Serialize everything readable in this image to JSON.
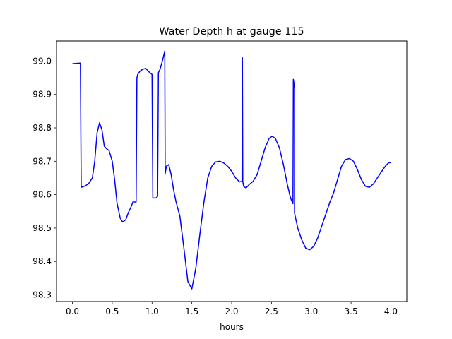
{
  "chart_data": {
    "type": "line",
    "title": "Water Depth h at gauge 115",
    "xlabel": "hours",
    "ylabel": "",
    "xlim": [
      -0.2,
      4.2
    ],
    "ylim": [
      98.28,
      99.06
    ],
    "xticks": [
      0.0,
      0.5,
      1.0,
      1.5,
      2.0,
      2.5,
      3.0,
      3.5,
      4.0
    ],
    "xtick_labels": [
      "0.0",
      "0.5",
      "1.0",
      "1.5",
      "2.0",
      "2.5",
      "3.0",
      "3.5",
      "4.0"
    ],
    "yticks": [
      98.3,
      98.4,
      98.5,
      98.6,
      98.7,
      98.8,
      98.9,
      99.0
    ],
    "ytick_labels": [
      "98.3",
      "98.4",
      "98.5",
      "98.6",
      "98.7",
      "98.8",
      "98.9",
      "99.0"
    ],
    "grid": false,
    "legend": "none",
    "series": [
      {
        "color": "#0000ff",
        "x": [
          0.0,
          0.04,
          0.1,
          0.11,
          0.15,
          0.2,
          0.25,
          0.28,
          0.31,
          0.34,
          0.37,
          0.4,
          0.43,
          0.46,
          0.5,
          0.53,
          0.56,
          0.6,
          0.63,
          0.67,
          0.7,
          0.73,
          0.76,
          0.8,
          0.81,
          0.82,
          0.85,
          0.88,
          0.92,
          0.96,
          1.0,
          1.01,
          1.02,
          1.05,
          1.07,
          1.08,
          1.1,
          1.13,
          1.16,
          1.165,
          1.18,
          1.21,
          1.24,
          1.27,
          1.3,
          1.35,
          1.4,
          1.45,
          1.5,
          1.55,
          1.6,
          1.65,
          1.7,
          1.75,
          1.8,
          1.85,
          1.9,
          1.95,
          2.0,
          2.05,
          2.1,
          2.13,
          2.135,
          2.14,
          2.15,
          2.18,
          2.22,
          2.27,
          2.32,
          2.37,
          2.42,
          2.47,
          2.51,
          2.55,
          2.6,
          2.65,
          2.7,
          2.74,
          2.77,
          2.775,
          2.78,
          2.785,
          2.79,
          2.79,
          2.83,
          2.88,
          2.93,
          2.98,
          3.03,
          3.08,
          3.13,
          3.18,
          3.23,
          3.28,
          3.33,
          3.38,
          3.43,
          3.48,
          3.53,
          3.58,
          3.63,
          3.68,
          3.73,
          3.78,
          3.83,
          3.88,
          3.93,
          3.97,
          4.0
        ],
        "y": [
          98.992,
          98.993,
          98.994,
          98.622,
          98.625,
          98.632,
          98.65,
          98.7,
          98.785,
          98.815,
          98.795,
          98.745,
          98.737,
          98.732,
          98.7,
          98.645,
          98.575,
          98.53,
          98.518,
          98.525,
          98.545,
          98.56,
          98.578,
          98.578,
          98.95,
          98.96,
          98.97,
          98.975,
          98.978,
          98.968,
          98.96,
          98.59,
          98.59,
          98.59,
          98.595,
          98.965,
          98.975,
          99.0,
          99.03,
          98.662,
          98.685,
          98.69,
          98.66,
          98.615,
          98.58,
          98.535,
          98.44,
          98.34,
          98.318,
          98.38,
          98.48,
          98.575,
          98.65,
          98.685,
          98.698,
          98.7,
          98.695,
          98.685,
          98.67,
          98.65,
          98.638,
          98.64,
          99.01,
          98.64,
          98.625,
          98.62,
          98.63,
          98.64,
          98.66,
          98.7,
          98.74,
          98.768,
          98.775,
          98.768,
          98.74,
          98.69,
          98.63,
          98.59,
          98.573,
          98.945,
          98.94,
          98.925,
          98.92,
          98.545,
          98.5,
          98.465,
          98.44,
          98.435,
          98.445,
          98.47,
          98.505,
          98.54,
          98.575,
          98.605,
          98.645,
          98.685,
          98.705,
          98.708,
          98.7,
          98.675,
          98.645,
          98.625,
          98.622,
          98.632,
          98.65,
          98.668,
          98.685,
          98.695,
          98.696
        ]
      }
    ]
  },
  "colors": {
    "line": "#0000ff",
    "axes": "#000000",
    "background": "#ffffff"
  }
}
